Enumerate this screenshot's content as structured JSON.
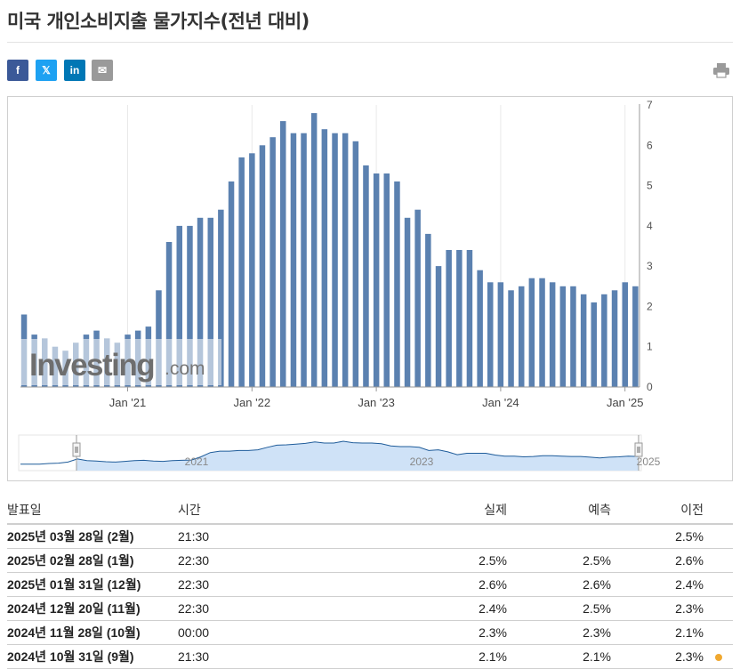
{
  "page": {
    "title": "미국 개인소비지출 물가지수(전년 대비)"
  },
  "share": {
    "facebook": "f",
    "twitter": "𝕏",
    "linkedin": "in",
    "email": "✉"
  },
  "watermark": {
    "brand": "Investing",
    "suffix": ".com"
  },
  "chart_data": {
    "type": "bar",
    "series": [
      {
        "values": [
          1.8,
          1.3,
          1.2,
          1.0,
          0.9,
          1.1,
          1.3,
          1.4,
          1.2,
          1.1,
          1.3,
          1.4,
          1.5,
          2.4,
          3.6,
          4.0,
          4.0,
          4.2,
          4.2,
          4.4,
          5.1,
          5.7,
          5.8,
          6.0,
          6.2,
          6.6,
          6.3,
          6.3,
          6.8,
          6.4,
          6.3,
          6.3,
          6.1,
          5.5,
          5.3,
          5.3,
          5.1,
          4.2,
          4.4,
          3.8,
          3.0,
          3.4,
          3.4,
          3.4,
          2.9,
          2.6,
          2.6,
          2.4,
          2.5,
          2.7,
          2.7,
          2.6,
          2.5,
          2.5,
          2.3,
          2.1,
          2.3,
          2.4,
          2.6,
          2.5
        ],
        "color": "#5b81b0"
      }
    ],
    "x_start": "2020-03",
    "x_end": "2025-02",
    "frequency": "monthly",
    "xticks": [
      "Jan '21",
      "Jan '22",
      "Jan '23",
      "Jan '24",
      "Jan '25"
    ],
    "yticks": [
      "0",
      "1",
      "2",
      "3",
      "4",
      "5",
      "6",
      "7"
    ],
    "ylim": [
      0,
      7
    ],
    "y_axis_side": "right",
    "grid": "vertical",
    "navigator": {
      "labels": [
        "2021",
        "2023",
        "2025"
      ],
      "range": [
        "2020-03",
        "2025-02"
      ]
    }
  },
  "table": {
    "headers": {
      "date": "발표일",
      "time": "시간",
      "actual": "실제",
      "forecast": "예측",
      "previous": "이전"
    },
    "rows": [
      {
        "date": "2025년 03월 28일 (2월)",
        "time": "21:30",
        "actual": "",
        "forecast": "",
        "previous": "2.5%"
      },
      {
        "date": "2025년 02월 28일 (1월)",
        "time": "22:30",
        "actual": "2.5%",
        "forecast": "2.5%",
        "previous": "2.6%"
      },
      {
        "date": "2025년 01월 31일 (12월)",
        "time": "22:30",
        "actual": "2.6%",
        "forecast": "2.6%",
        "previous": "2.4%"
      },
      {
        "date": "2024년 12월 20일 (11월)",
        "time": "22:30",
        "actual": "2.4%",
        "forecast": "2.5%",
        "previous": "2.3%"
      },
      {
        "date": "2024년 11월 28일 (10월)",
        "time": "00:00",
        "actual": "2.3%",
        "forecast": "2.3%",
        "previous": "2.1%"
      },
      {
        "date": "2024년 10월 31일 (9월)",
        "time": "21:30",
        "actual": "2.1%",
        "forecast": "2.1%",
        "previous": "2.3%"
      }
    ],
    "colors": {
      "up": "#2aa1d6",
      "down": "#e01f1f"
    }
  }
}
